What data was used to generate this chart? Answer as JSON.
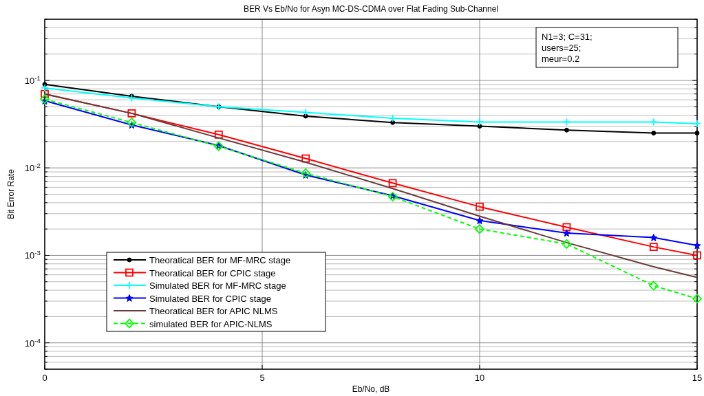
{
  "chart_data": {
    "type": "line",
    "title": "BER Vs Eb/No for Asyn MC-DS-CDMA over Flat Fading Sub-Channel",
    "xlabel": "Eb/No, dB",
    "ylabel": "Bit Error Rate",
    "x": [
      0,
      2,
      4,
      6,
      8,
      10,
      12,
      14,
      15
    ],
    "series": [
      {
        "name": "Theoratical BER for MF-MRC stage",
        "color": "#000000",
        "marker": "circle",
        "values": [
          0.09,
          0.066,
          0.05,
          0.039,
          0.033,
          0.03,
          0.027,
          0.025,
          0.025
        ]
      },
      {
        "name": "Theoratical BER for CPIC stage",
        "color": "#ff0000",
        "marker": "square",
        "values": [
          0.07,
          0.042,
          0.024,
          0.0128,
          0.0067,
          0.0036,
          0.0021,
          0.00125,
          0.001
        ]
      },
      {
        "name": "Simulated BER for MF-MRC stage",
        "color": "#00ffff",
        "marker": "cross",
        "values": [
          0.082,
          0.063,
          0.05,
          0.043,
          0.037,
          0.0335,
          0.0335,
          0.0335,
          0.032
        ]
      },
      {
        "name": "Simulated BER for CPIC stage",
        "color": "#0000ff",
        "marker": "star",
        "values": [
          0.0585,
          0.031,
          0.018,
          0.0083,
          0.0048,
          0.0025,
          0.0018,
          0.0016,
          0.0013
        ]
      },
      {
        "name": "Theoratical BER for APIC NLMS",
        "color": "#6b3a3a",
        "marker": "none",
        "values": [
          0.07,
          0.042,
          0.022,
          0.0116,
          0.0058,
          0.0028,
          0.0014,
          0.00074,
          0.00056
        ]
      },
      {
        "name": "simulated BER for APIC-NLMS",
        "color": "#00ff00",
        "marker": "diamond",
        "line_style": "dashed",
        "values": [
          0.061,
          0.033,
          0.0177,
          0.0087,
          0.0047,
          0.002,
          0.00135,
          0.00045,
          0.00032
        ]
      }
    ],
    "log": "y",
    "grid": true,
    "legend": "bottom left",
    "xlim": [
      0,
      15
    ],
    "xticks": [
      0,
      5,
      10,
      15
    ],
    "ylim": [
      5e-05,
      0.5
    ],
    "yticks": [
      {
        "value": 5e-05,
        "label": null
      },
      {
        "value": 6e-05,
        "label": null
      },
      {
        "value": 7e-05,
        "label": null
      },
      {
        "value": 8e-05,
        "label": null
      },
      {
        "value": 9e-05,
        "label": null
      },
      {
        "value": 0.0001,
        "label": "10$^{-4}$"
      },
      {
        "value": 0.0002,
        "label": null
      },
      {
        "value": 0.0003,
        "label": null
      },
      {
        "value": 0.0004,
        "label": null
      },
      {
        "value": 0.0005,
        "label": null
      },
      {
        "value": 0.0006,
        "label": null
      },
      {
        "value": 0.0007,
        "label": null
      },
      {
        "value": 0.0008,
        "label": null
      },
      {
        "value": 0.0009,
        "label": null
      },
      {
        "value": 0.001,
        "label": "10$^{-3}$"
      },
      {
        "value": 0.002,
        "label": null
      },
      {
        "value": 0.003,
        "label": null
      },
      {
        "value": 0.004,
        "label": null
      },
      {
        "value": 0.005,
        "label": null
      },
      {
        "value": 0.006,
        "label": null
      },
      {
        "value": 0.007,
        "label": null
      },
      {
        "value": 0.008,
        "label": null
      },
      {
        "value": 0.009,
        "label": null
      },
      {
        "value": 0.01,
        "label": "10$^{-2}$"
      },
      {
        "value": 0.02,
        "label": null
      },
      {
        "value": 0.03,
        "label": null
      },
      {
        "value": 0.04,
        "label": null
      },
      {
        "value": 0.05,
        "label": null
      },
      {
        "value": 0.06,
        "label": null
      },
      {
        "value": 0.07,
        "label": null
      },
      {
        "value": 0.08,
        "label": null
      },
      {
        "value": 0.09,
        "label": null
      },
      {
        "value": 0.1,
        "label": "10$^{-1}$"
      },
      {
        "value": 0.2,
        "label": null
      },
      {
        "value": 0.3,
        "label": null
      },
      {
        "value": 0.4,
        "label": null
      },
      {
        "value": 0.5,
        "label": null
      }
    ],
    "annotations": [
      "N1=3; C=31;",
      "users=25;",
      "meur=0.2"
    ]
  }
}
